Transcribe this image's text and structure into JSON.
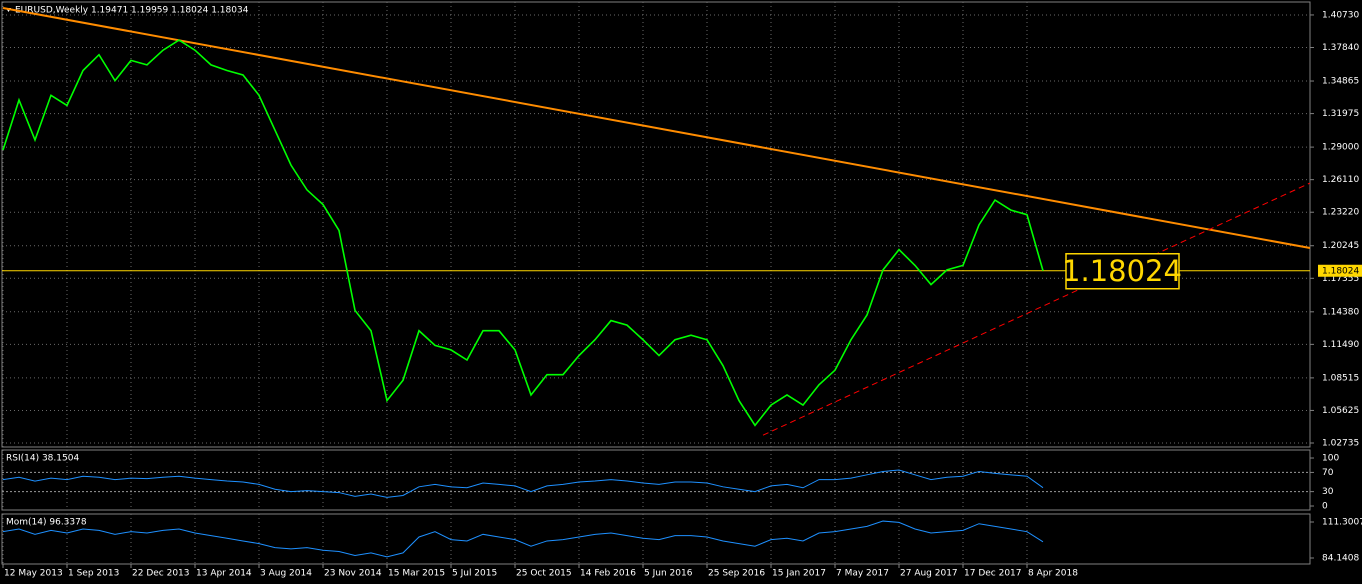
{
  "chart_data": [
    {
      "type": "line",
      "title": "EURUSD,Weekly  1.19471 1.19959 1.18024 1.18034",
      "x": [
        0,
        4,
        8,
        12,
        16,
        20,
        24,
        28,
        32,
        36,
        40,
        44,
        48,
        52,
        56,
        60,
        64,
        68,
        72,
        76,
        80,
        84,
        88,
        92,
        96,
        100,
        104,
        108,
        112,
        116,
        120,
        124,
        128,
        132,
        136,
        140,
        144,
        148,
        152,
        156,
        160,
        164,
        168,
        172,
        176,
        180,
        184,
        188,
        192,
        196,
        200,
        204,
        208,
        212,
        216,
        220,
        224,
        228,
        232,
        236,
        240,
        244,
        248,
        252,
        256,
        260
      ],
      "values": [
        1.2874,
        1.3318,
        1.2963,
        1.336,
        1.327,
        1.358,
        1.372,
        1.349,
        1.367,
        1.363,
        1.376,
        1.385,
        1.376,
        1.363,
        1.358,
        1.354,
        1.336,
        1.305,
        1.274,
        1.252,
        1.239,
        1.216,
        1.145,
        1.127,
        1.065,
        1.083,
        1.127,
        1.114,
        1.11,
        1.101,
        1.127,
        1.127,
        1.11,
        1.07,
        1.088,
        1.088,
        1.105,
        1.119,
        1.136,
        1.132,
        1.119,
        1.105,
        1.119,
        1.123,
        1.119,
        1.096,
        1.065,
        1.043,
        1.061,
        1.07,
        1.061,
        1.079,
        1.092,
        1.119,
        1.141,
        1.181,
        1.199,
        1.185,
        1.168,
        1.181,
        1.185,
        1.221,
        1.243,
        1.234,
        1.23,
        1.18024
      ],
      "color": "#00ff00",
      "xlim": [
        -0.25,
        326.75
      ],
      "xticks": [
        {
          "value": 0,
          "label": "12 May 2013"
        },
        {
          "value": 16,
          "label": "1 Sep 2013"
        },
        {
          "value": 32,
          "label": "22 Dec 2013"
        },
        {
          "value": 48,
          "label": "13 Apr 2014"
        },
        {
          "value": 64,
          "label": "3 Aug 2014"
        },
        {
          "value": 80,
          "label": "23 Nov 2014"
        },
        {
          "value": 96,
          "label": "15 Mar 2015"
        },
        {
          "value": 112,
          "label": "5 Jul 2015"
        },
        {
          "value": 128,
          "label": "25 Oct 2015"
        },
        {
          "value": 144,
          "label": "14 Feb 2016"
        },
        {
          "value": 160,
          "label": "5 Jun 2016"
        },
        {
          "value": 176,
          "label": "25 Sep 2016"
        },
        {
          "value": 192,
          "label": "15 Jan 2017"
        },
        {
          "value": 208,
          "label": "7 May 2017"
        },
        {
          "value": 224,
          "label": "27 Aug 2017"
        },
        {
          "value": 240,
          "label": "17 Dec 2017"
        },
        {
          "value": 256,
          "label": "8 Apr 2018"
        }
      ],
      "ylim": [
        1.0238,
        1.4188
      ],
      "yticks": [
        {
          "value": 1.4073,
          "label": "1.40730"
        },
        {
          "value": 1.3784,
          "label": "1.37840"
        },
        {
          "value": 1.34865,
          "label": "1.34865"
        },
        {
          "value": 1.31975,
          "label": "1.31975"
        },
        {
          "value": 1.29,
          "label": "1.29000"
        },
        {
          "value": 1.2611,
          "label": "1.26110"
        },
        {
          "value": 1.2322,
          "label": "1.23220"
        },
        {
          "value": 1.20245,
          "label": "1.20245"
        },
        {
          "value": 1.17355,
          "label": "1.17355"
        },
        {
          "value": 1.1438,
          "label": "1.14380"
        },
        {
          "value": 1.1149,
          "label": "1.11490"
        },
        {
          "value": 1.08515,
          "label": "1.08515"
        },
        {
          "value": 1.05625,
          "label": "1.05625"
        },
        {
          "value": 1.02735,
          "label": "1.02735"
        }
      ],
      "grid": true,
      "lines": [
        {
          "points": [
            [
              0,
              1.4135
            ],
            [
              326.75,
              1.2004
            ]
          ],
          "color": "#ff8c00"
        },
        {
          "points": [
            [
              190,
              1.0343
            ],
            [
              326.75,
              1.2581
            ]
          ],
          "color": "#ff0000",
          "dashed": true
        }
      ],
      "current_price": {
        "value": 1.18024,
        "label": "1.18024"
      },
      "current_price_color": "#ffd700"
    },
    {
      "type": "line",
      "title": "RSI(14) 38.1504",
      "values": [
        55,
        60,
        52,
        58,
        55,
        62,
        60,
        55,
        58,
        57,
        60,
        62,
        58,
        55,
        52,
        50,
        45,
        35,
        30,
        32,
        30,
        28,
        20,
        25,
        18,
        22,
        40,
        45,
        40,
        38,
        48,
        45,
        42,
        30,
        42,
        45,
        50,
        52,
        55,
        52,
        48,
        45,
        50,
        50,
        48,
        40,
        35,
        30,
        42,
        45,
        38,
        55,
        55,
        58,
        65,
        72,
        75,
        65,
        55,
        60,
        62,
        72,
        68,
        65,
        62,
        38.1504
      ],
      "color": "#1e90ff",
      "ylim": [
        -8.3,
        116.7
      ],
      "yticks": [
        100,
        70,
        30,
        0
      ],
      "levels": [
        70,
        30
      ]
    },
    {
      "type": "line",
      "title": "Mom(14) 96.3378",
      "values": [
        104,
        106,
        102,
        105,
        103,
        106,
        105,
        102,
        104,
        103,
        105,
        106,
        103,
        101,
        99,
        97,
        95,
        92,
        91,
        92,
        90,
        89,
        86,
        88,
        85,
        88,
        100,
        104,
        98,
        97,
        102,
        100,
        98,
        93,
        97,
        98,
        100,
        102,
        103,
        101,
        99,
        98,
        101,
        101,
        100,
        97,
        95,
        93,
        98,
        99,
        97,
        103,
        104,
        106,
        108,
        112,
        111,
        106,
        103,
        104,
        105,
        110,
        108,
        106,
        104,
        96.3378
      ],
      "color": "#1e90ff",
      "ylim": [
        79.61,
        117.33
      ],
      "yticks": [
        111.3007,
        84.1408
      ]
    }
  ]
}
